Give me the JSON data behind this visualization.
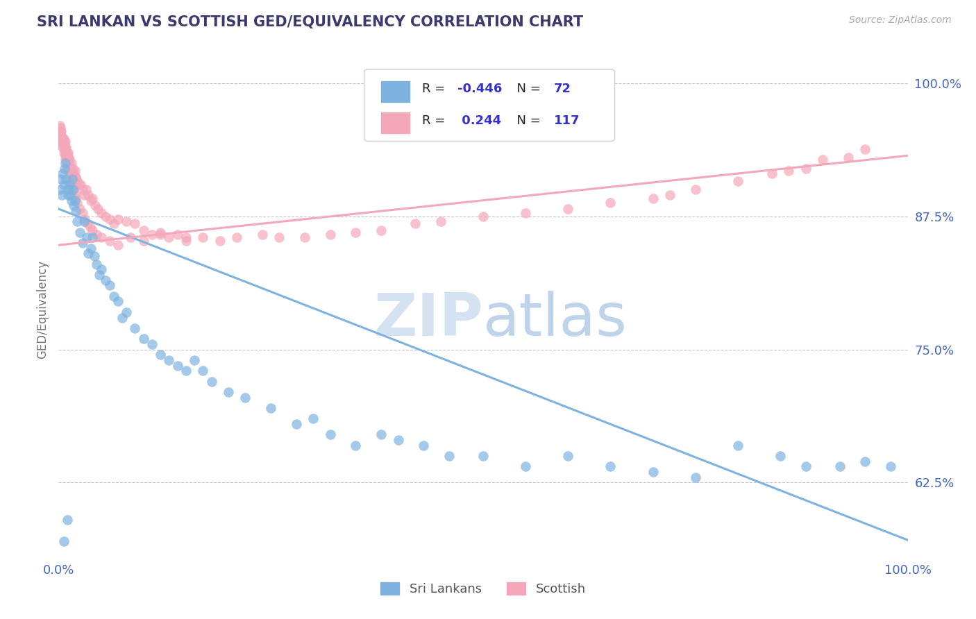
{
  "title": "SRI LANKAN VS SCOTTISH GED/EQUIVALENCY CORRELATION CHART",
  "source": "Source: ZipAtlas.com",
  "ylabel": "GED/Equivalency",
  "ytick_labels": [
    "62.5%",
    "75.0%",
    "87.5%",
    "100.0%"
  ],
  "ytick_values": [
    0.625,
    0.75,
    0.875,
    1.0
  ],
  "legend_r_sri": "-0.446",
  "legend_n_sri": "72",
  "legend_r_scot": "0.244",
  "legend_n_scot": "117",
  "sri_color": "#7eb3e0",
  "scottish_color": "#f4a7b9",
  "background_color": "#ffffff",
  "watermark_color": "#d0dff0",
  "title_color": "#3a3a6e",
  "axis_color": "#4466bb",
  "title_fontsize": 15,
  "sri_trend": [
    0.882,
    0.571
  ],
  "scot_trend": [
    0.848,
    0.932
  ],
  "sri_lankans_x": [
    0.002,
    0.003,
    0.004,
    0.005,
    0.006,
    0.007,
    0.008,
    0.009,
    0.01,
    0.011,
    0.012,
    0.013,
    0.014,
    0.015,
    0.016,
    0.017,
    0.018,
    0.019,
    0.02,
    0.022,
    0.025,
    0.028,
    0.03,
    0.033,
    0.035,
    0.038,
    0.04,
    0.042,
    0.045,
    0.048,
    0.05,
    0.055,
    0.06,
    0.065,
    0.07,
    0.075,
    0.08,
    0.09,
    0.1,
    0.11,
    0.12,
    0.13,
    0.14,
    0.15,
    0.16,
    0.17,
    0.18,
    0.2,
    0.22,
    0.25,
    0.28,
    0.3,
    0.32,
    0.35,
    0.38,
    0.4,
    0.43,
    0.46,
    0.5,
    0.55,
    0.6,
    0.65,
    0.7,
    0.75,
    0.8,
    0.85,
    0.88,
    0.92,
    0.95,
    0.98,
    0.006,
    0.01
  ],
  "sri_lankans_y": [
    0.9,
    0.91,
    0.895,
    0.915,
    0.905,
    0.92,
    0.925,
    0.91,
    0.9,
    0.895,
    0.9,
    0.905,
    0.895,
    0.89,
    0.91,
    0.9,
    0.885,
    0.89,
    0.88,
    0.87,
    0.86,
    0.85,
    0.87,
    0.855,
    0.84,
    0.845,
    0.855,
    0.838,
    0.83,
    0.82,
    0.825,
    0.815,
    0.81,
    0.8,
    0.795,
    0.78,
    0.785,
    0.77,
    0.76,
    0.755,
    0.745,
    0.74,
    0.735,
    0.73,
    0.74,
    0.73,
    0.72,
    0.71,
    0.705,
    0.695,
    0.68,
    0.685,
    0.67,
    0.66,
    0.67,
    0.665,
    0.66,
    0.65,
    0.65,
    0.64,
    0.65,
    0.64,
    0.635,
    0.63,
    0.66,
    0.65,
    0.64,
    0.64,
    0.645,
    0.64,
    0.57,
    0.59
  ],
  "scottish_x": [
    0.001,
    0.002,
    0.003,
    0.003,
    0.004,
    0.004,
    0.005,
    0.005,
    0.006,
    0.006,
    0.007,
    0.007,
    0.008,
    0.008,
    0.009,
    0.009,
    0.01,
    0.01,
    0.011,
    0.011,
    0.012,
    0.012,
    0.013,
    0.014,
    0.015,
    0.016,
    0.017,
    0.018,
    0.019,
    0.02,
    0.021,
    0.022,
    0.024,
    0.026,
    0.028,
    0.03,
    0.032,
    0.035,
    0.038,
    0.04,
    0.043,
    0.046,
    0.05,
    0.055,
    0.06,
    0.065,
    0.07,
    0.08,
    0.09,
    0.1,
    0.11,
    0.12,
    0.13,
    0.14,
    0.15,
    0.17,
    0.19,
    0.21,
    0.24,
    0.26,
    0.29,
    0.32,
    0.35,
    0.38,
    0.42,
    0.45,
    0.5,
    0.55,
    0.6,
    0.65,
    0.7,
    0.72,
    0.75,
    0.8,
    0.84,
    0.86,
    0.88,
    0.9,
    0.93,
    0.95,
    0.002,
    0.003,
    0.004,
    0.005,
    0.006,
    0.006,
    0.007,
    0.008,
    0.008,
    0.009,
    0.01,
    0.01,
    0.011,
    0.012,
    0.013,
    0.014,
    0.015,
    0.016,
    0.017,
    0.018,
    0.019,
    0.02,
    0.022,
    0.025,
    0.028,
    0.031,
    0.034,
    0.037,
    0.04,
    0.045,
    0.05,
    0.06,
    0.07,
    0.085,
    0.1,
    0.12,
    0.15
  ],
  "scottish_y": [
    0.96,
    0.955,
    0.955,
    0.95,
    0.945,
    0.95,
    0.945,
    0.94,
    0.948,
    0.942,
    0.945,
    0.938,
    0.94,
    0.945,
    0.935,
    0.94,
    0.935,
    0.93,
    0.935,
    0.928,
    0.93,
    0.925,
    0.928,
    0.92,
    0.925,
    0.918,
    0.92,
    0.915,
    0.918,
    0.912,
    0.91,
    0.908,
    0.905,
    0.905,
    0.9,
    0.895,
    0.9,
    0.895,
    0.89,
    0.892,
    0.885,
    0.882,
    0.878,
    0.875,
    0.872,
    0.868,
    0.872,
    0.87,
    0.868,
    0.862,
    0.858,
    0.86,
    0.855,
    0.858,
    0.852,
    0.855,
    0.852,
    0.855,
    0.858,
    0.855,
    0.855,
    0.858,
    0.86,
    0.862,
    0.868,
    0.87,
    0.875,
    0.878,
    0.882,
    0.888,
    0.892,
    0.895,
    0.9,
    0.908,
    0.915,
    0.918,
    0.92,
    0.928,
    0.93,
    0.938,
    0.958,
    0.95,
    0.948,
    0.942,
    0.94,
    0.935,
    0.938,
    0.932,
    0.928,
    0.93,
    0.925,
    0.92,
    0.922,
    0.918,
    0.915,
    0.912,
    0.908,
    0.905,
    0.902,
    0.9,
    0.895,
    0.892,
    0.888,
    0.882,
    0.878,
    0.872,
    0.868,
    0.865,
    0.862,
    0.858,
    0.855,
    0.852,
    0.848,
    0.855,
    0.852,
    0.858,
    0.855
  ]
}
